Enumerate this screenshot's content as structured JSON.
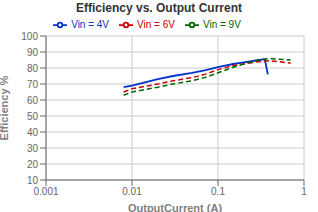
{
  "chart_data": {
    "type": "line",
    "title": "Efficiency vs. Output Current",
    "xlabel": "OutputCurrent (A)",
    "ylabel": "Efficiency %",
    "log": "x",
    "grid": true,
    "legend": "top",
    "xlim": [
      0.001,
      1
    ],
    "xticks": [
      0.001,
      0.01,
      0.1,
      1
    ],
    "ylim": [
      10,
      100
    ],
    "yticks": [
      10,
      20,
      30,
      40,
      50,
      60,
      70,
      80,
      90,
      100
    ],
    "series": [
      {
        "name": "Vin = 4V",
        "color": "#0033cc",
        "line_style": "solid",
        "x": [
          0.008,
          0.01,
          0.02,
          0.03,
          0.05,
          0.07,
          0.1,
          0.15,
          0.2,
          0.3,
          0.35,
          0.38
        ],
        "values": [
          68,
          69,
          73,
          75,
          77,
          78.5,
          80.5,
          82.5,
          83.5,
          85,
          85.5,
          76
        ]
      },
      {
        "name": "Vin = 6V",
        "color": "#cc0000",
        "line_style": "dashed",
        "x": [
          0.008,
          0.01,
          0.02,
          0.03,
          0.05,
          0.07,
          0.1,
          0.15,
          0.2,
          0.3,
          0.4,
          0.5,
          0.7
        ],
        "values": [
          65,
          67,
          70,
          72,
          74,
          76,
          79,
          81.5,
          82.5,
          84,
          84.5,
          84,
          83
        ]
      },
      {
        "name": "Vin = 9V",
        "color": "#006600",
        "line_style": "dashed",
        "x": [
          0.008,
          0.01,
          0.02,
          0.03,
          0.05,
          0.07,
          0.1,
          0.15,
          0.2,
          0.3,
          0.4,
          0.5,
          0.7
        ],
        "values": [
          63,
          65,
          68,
          70,
          72,
          74,
          77,
          80.5,
          82.5,
          85,
          86,
          85.5,
          85
        ]
      }
    ]
  }
}
